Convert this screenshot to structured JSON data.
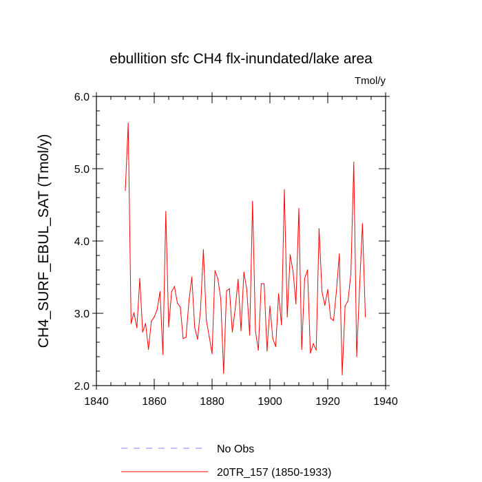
{
  "chart_data": {
    "type": "line",
    "title": "ebullition sfc CH4 flx-inundated/lake area",
    "units": "Tmol/y",
    "xlabel": "",
    "ylabel": "CH4_SURF_EBUL_SAT  (Tmol/y)",
    "xlim": [
      1840,
      1940
    ],
    "ylim": [
      2.0,
      6.0
    ],
    "xticks": [
      1840,
      1860,
      1880,
      1900,
      1920,
      1940
    ],
    "xtick_labels": [
      "1840",
      "1860",
      "1880",
      "1900",
      "1920",
      "1940"
    ],
    "yticks": [
      2.0,
      3.0,
      4.0,
      5.0,
      6.0
    ],
    "ytick_labels": [
      "2.0",
      "3.0",
      "4.0",
      "5.0",
      "6.0"
    ],
    "legend": [
      {
        "name": "No Obs",
        "color": "#8080ff",
        "style": "dashed"
      },
      {
        "name": "20TR_157 (1850-1933)",
        "color": "#ff0000",
        "style": "solid"
      }
    ],
    "series": [
      {
        "name": "20TR_157 (1850-1933)",
        "color": "#ff0000",
        "x": [
          1850,
          1851,
          1852,
          1853,
          1854,
          1855,
          1856,
          1857,
          1858,
          1859,
          1860,
          1861,
          1862,
          1863,
          1864,
          1865,
          1866,
          1867,
          1868,
          1869,
          1870,
          1871,
          1872,
          1873,
          1874,
          1875,
          1876,
          1877,
          1878,
          1879,
          1880,
          1881,
          1882,
          1883,
          1884,
          1885,
          1886,
          1887,
          1888,
          1889,
          1890,
          1891,
          1892,
          1893,
          1894,
          1895,
          1896,
          1897,
          1898,
          1899,
          1900,
          1901,
          1902,
          1903,
          1904,
          1905,
          1906,
          1907,
          1908,
          1909,
          1910,
          1911,
          1912,
          1913,
          1914,
          1915,
          1916,
          1917,
          1918,
          1919,
          1920,
          1921,
          1922,
          1923,
          1924,
          1925,
          1926,
          1927,
          1928,
          1929,
          1930,
          1931,
          1932,
          1933
        ],
        "values": [
          4.7,
          5.63,
          2.86,
          3.01,
          2.8,
          3.48,
          2.74,
          2.86,
          2.5,
          2.89,
          2.95,
          3.05,
          3.3,
          2.43,
          4.41,
          2.81,
          3.3,
          3.37,
          3.14,
          3.09,
          2.65,
          2.67,
          3.17,
          3.5,
          2.8,
          2.64,
          3.05,
          3.88,
          2.91,
          2.68,
          2.44,
          3.59,
          3.48,
          3.2,
          2.17,
          3.31,
          3.34,
          2.74,
          3.06,
          3.47,
          2.76,
          3.57,
          3.33,
          2.7,
          4.55,
          2.75,
          2.49,
          3.41,
          3.41,
          2.48,
          3.1,
          2.65,
          2.54,
          3.27,
          2.84,
          4.71,
          2.95,
          3.81,
          3.58,
          3.13,
          4.45,
          2.5,
          3.48,
          3.6,
          2.45,
          2.58,
          2.49,
          4.17,
          3.3,
          3.11,
          3.33,
          2.93,
          2.9,
          3.31,
          3.82,
          2.15,
          3.1,
          3.17,
          3.55,
          5.09,
          2.4,
          3.37,
          4.24,
          2.95
        ]
      }
    ]
  }
}
